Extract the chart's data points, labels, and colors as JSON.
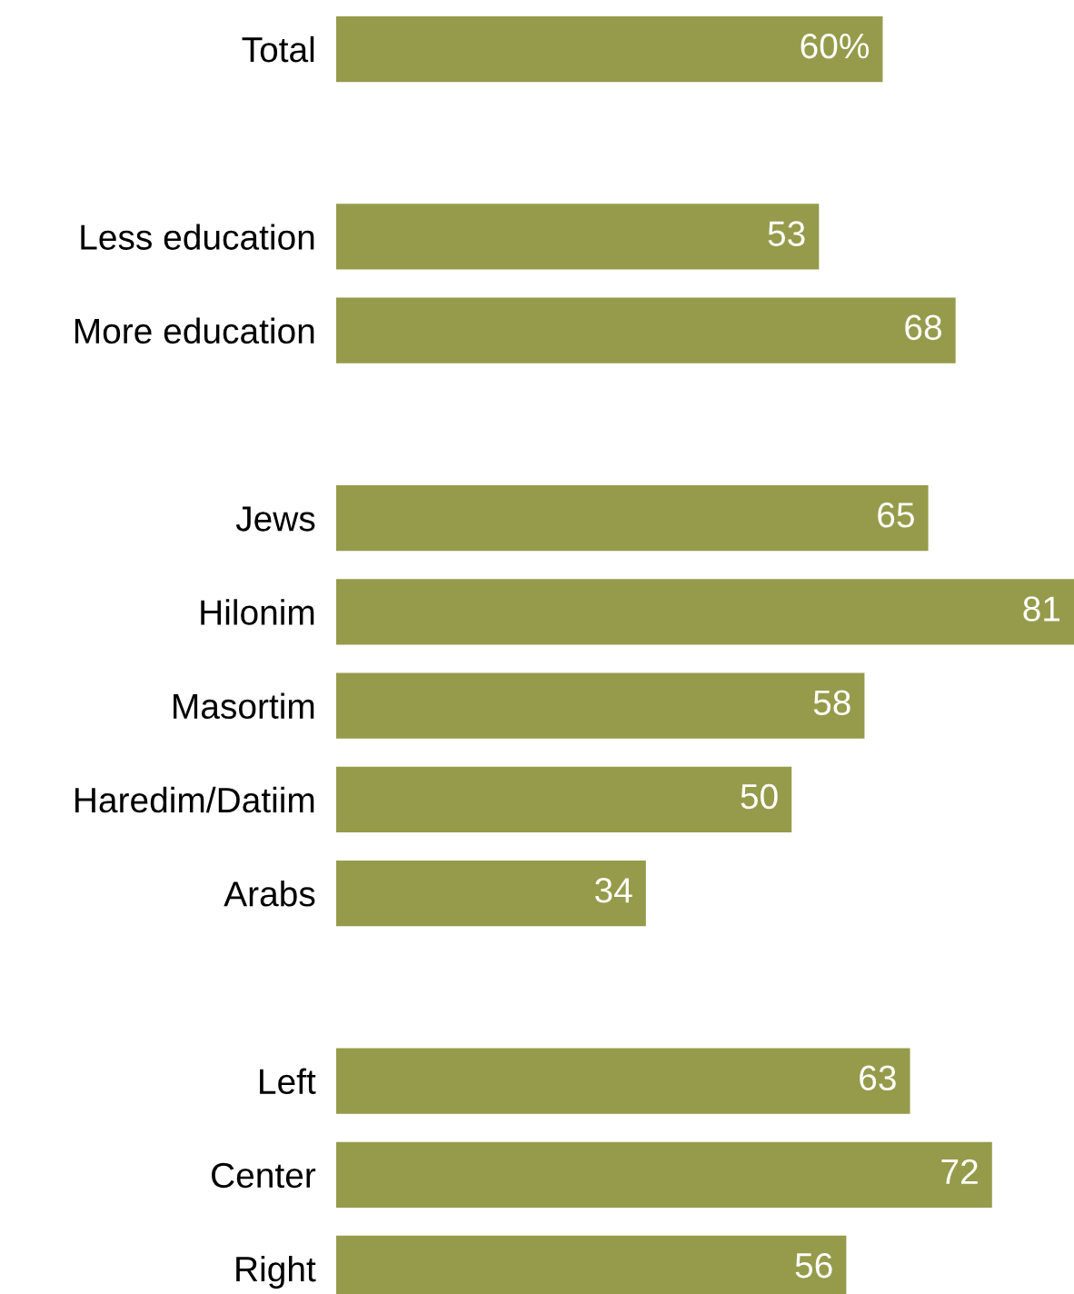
{
  "chart_data": {
    "type": "bar",
    "orientation": "horizontal",
    "categories": [
      "Total",
      null,
      "Less education",
      "More education",
      null,
      "Jews",
      "Hilonim",
      "Masortim",
      "Haredim/Datiim",
      "Arabs",
      null,
      "Left",
      "Center",
      "Right"
    ],
    "values": [
      60,
      null,
      53,
      68,
      null,
      65,
      81,
      58,
      50,
      34,
      null,
      63,
      72,
      56
    ],
    "value_labels": [
      "60%",
      null,
      "53",
      "68",
      null,
      "65",
      "81",
      "58",
      "50",
      "34",
      null,
      "63",
      "72",
      "56"
    ],
    "color": "#959b4a"
  }
}
